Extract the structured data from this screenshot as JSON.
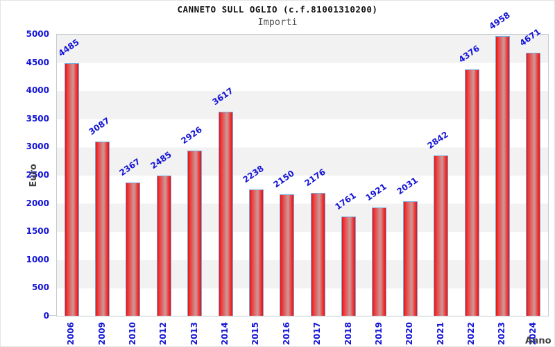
{
  "header": {
    "title": "CANNETO SULL OGLIO (c.f.81001310200)",
    "subtitle": "Importi"
  },
  "axes": {
    "y_label": "Euro",
    "x_label": "Anno"
  },
  "colors": {
    "bar_red": "#e51111",
    "bar_center_light": "#d18f8f",
    "bar_border_blue": "#77aadd",
    "label_blue": "#1414d6",
    "band_gray": "#f2f2f2",
    "plot_border": "#c6ccd2",
    "axis_title_gray": "#444444"
  },
  "chart_data": {
    "type": "bar",
    "title": "CANNETO SULL OGLIO (c.f.81001310200)",
    "subtitle": "Importi",
    "xlabel": "Anno",
    "ylabel": "Euro",
    "categories": [
      "2006",
      "2009",
      "2010",
      "2012",
      "2013",
      "2014",
      "2015",
      "2016",
      "2017",
      "2018",
      "2019",
      "2020",
      "2021",
      "2022",
      "2023",
      "2024"
    ],
    "values": [
      4485,
      3087,
      2367,
      2485,
      2926,
      3617,
      2238,
      2150,
      2176,
      1761,
      1921,
      2031,
      2842,
      4376,
      4958,
      4671
    ],
    "ylim": [
      0,
      5000
    ],
    "yticks": [
      0,
      500,
      1000,
      1500,
      2000,
      2500,
      3000,
      3500,
      4000,
      4500,
      5000
    ],
    "grid": "alternating horizontal bands every 500, gray band at top",
    "legend_position": "none",
    "data_labels_rotation_deg": -35,
    "x_labels_rotation_deg": -90
  }
}
